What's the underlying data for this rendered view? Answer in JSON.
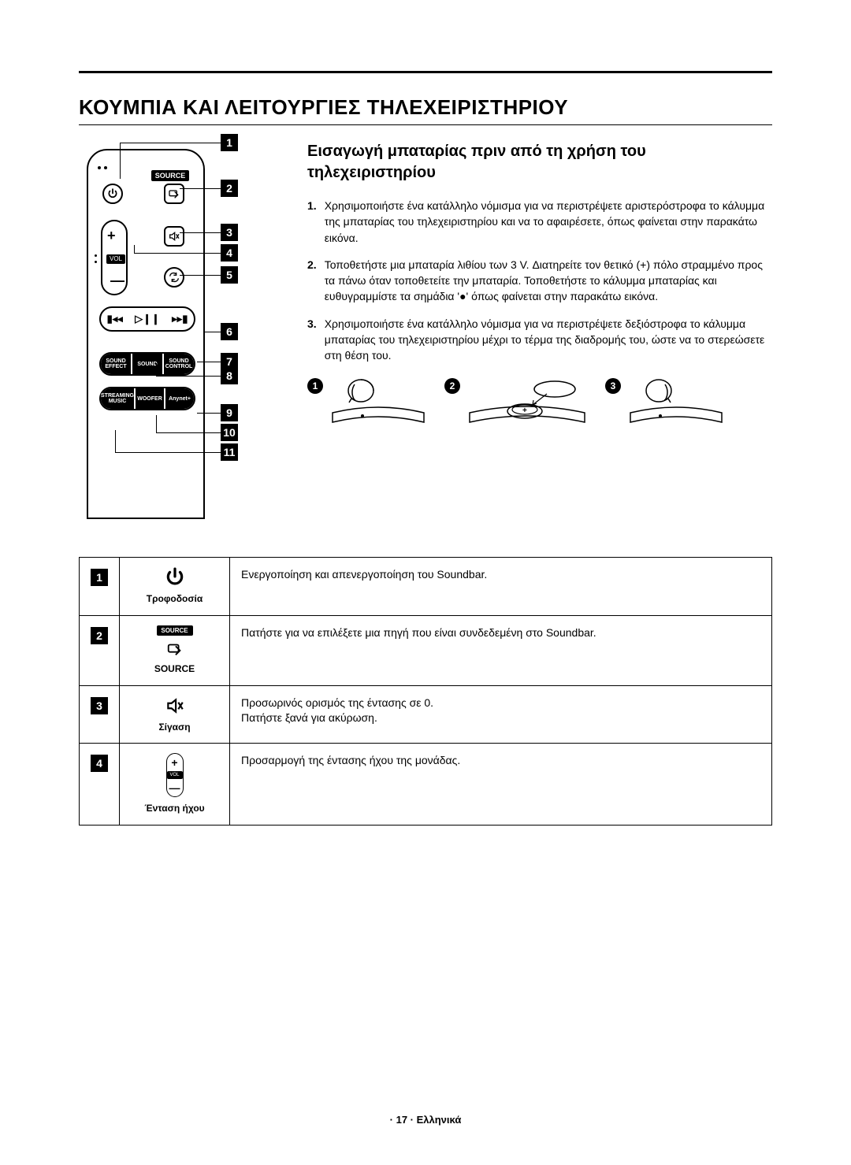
{
  "section_title": "ΚΟΥΜΠΙΑ ΚΑΙ ΛΕΙΤΟΥΡΓΙΕΣ ΤΗΛΕΧΕΙΡΙΣΤΗΡΙΟΥ",
  "sub_title": "Εισαγωγή μπαταρίας πριν από τη χρήση του τηλεχειριστηρίου",
  "steps": [
    {
      "n": "1.",
      "text": "Χρησιμοποιήστε ένα κατάλληλο νόμισμα για να περιστρέψετε αριστερόστροφα το κάλυμμα της μπαταρίας του τηλεχειριστηρίου και να το αφαιρέσετε, όπως φαίνεται στην παρακάτω εικόνα."
    },
    {
      "n": "2.",
      "text": "Τοποθετήστε μια μπαταρία λιθίου των 3 V. Διατηρείτε τον θετικό (+) πόλο στραμμένο προς τα πάνω όταν τοποθετείτε την μπαταρία. Τοποθετήστε το κάλυμμα μπαταρίας και ευθυγραμμίστε τα σημάδια '●' όπως φαίνεται στην παρακάτω εικόνα."
    },
    {
      "n": "3.",
      "text": "Χρησιμοποιήστε ένα κατάλληλο νόμισμα για να περιστρέψετε δεξιόστροφα το κάλυμμα μπαταρίας του τηλεχειριστηρίου μέχρι το τέρμα της διαδρομής του, ώστε να το στερεώσετε στη θέση του."
    }
  ],
  "remote": {
    "source_label": "SOURCE",
    "vol_label": "VOL",
    "pill_a": [
      "SOUND EFFECT",
      "SOUND",
      "SOUND CONTROL"
    ],
    "pill_b": [
      "STREAMING MUSIC",
      "WOOFER",
      "Anynet+"
    ]
  },
  "callouts": {
    "count": 11
  },
  "illus_nums": [
    "1",
    "2",
    "3"
  ],
  "table": {
    "rows": [
      {
        "num": "1",
        "icon_key": "power",
        "label": "Τροφοδοσία",
        "desc": "Ενεργοποίηση και απενεργοποίηση του Soundbar."
      },
      {
        "num": "2",
        "icon_key": "source",
        "label": "SOURCE",
        "desc": "Πατήστε για να επιλέξετε μια πηγή που είναι συνδεδεμένη στο Soundbar."
      },
      {
        "num": "3",
        "icon_key": "mute",
        "label": "Σίγαση",
        "desc": "Προσωρινός ορισμός της έντασης σε 0.\nΠατήστε ξανά για ακύρωση."
      },
      {
        "num": "4",
        "icon_key": "volume",
        "label": "Ένταση ήχου",
        "desc": "Προσαρμογή της έντασης ήχου της μονάδας."
      }
    ]
  },
  "footer": "· 17 · Ελληνικά",
  "colors": {
    "text": "#000000",
    "bg": "#ffffff"
  }
}
